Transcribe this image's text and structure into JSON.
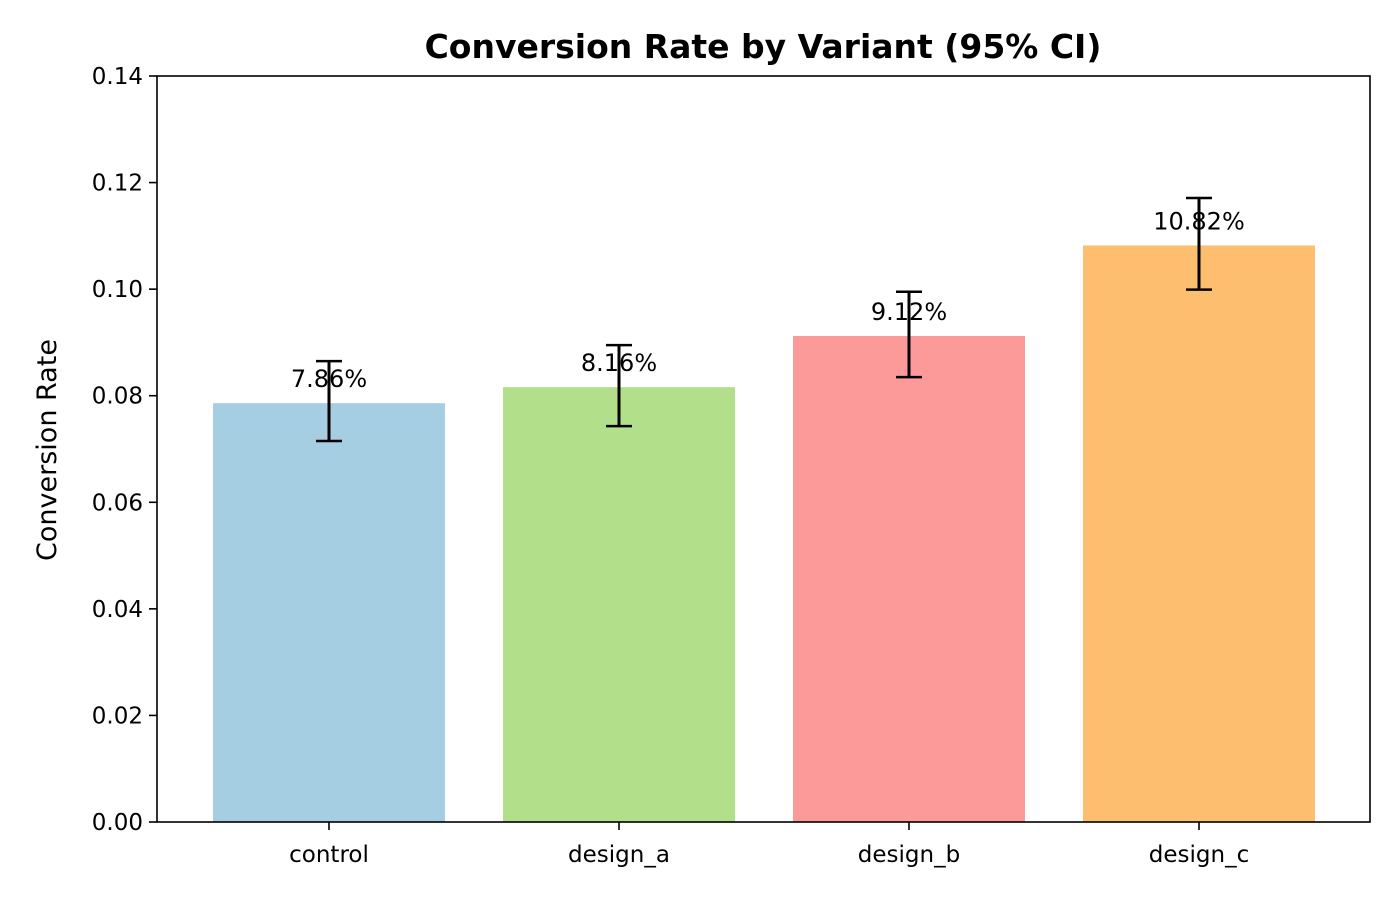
{
  "chart_data": {
    "type": "bar",
    "title": "Conversion Rate by Variant (95% CI)",
    "xlabel": "",
    "ylabel": "Conversion Rate",
    "ylim": [
      0,
      0.14
    ],
    "yticks": [
      "0.00",
      "0.02",
      "0.04",
      "0.06",
      "0.08",
      "0.10",
      "0.12",
      "0.14"
    ],
    "grid": false,
    "categories": [
      "control",
      "design_a",
      "design_b",
      "design_c"
    ],
    "values": [
      0.0786,
      0.0816,
      0.0912,
      0.1082
    ],
    "ci_lower": [
      0.0715,
      0.0743,
      0.0835,
      0.0999
    ],
    "ci_upper": [
      0.0865,
      0.0895,
      0.0995,
      0.1171
    ],
    "value_labels": [
      "7.86%",
      "8.16%",
      "9.12%",
      "10.82%"
    ],
    "colors": [
      "#a6cee3",
      "#b2df8a",
      "#fb9a99",
      "#fdbf6f"
    ]
  }
}
